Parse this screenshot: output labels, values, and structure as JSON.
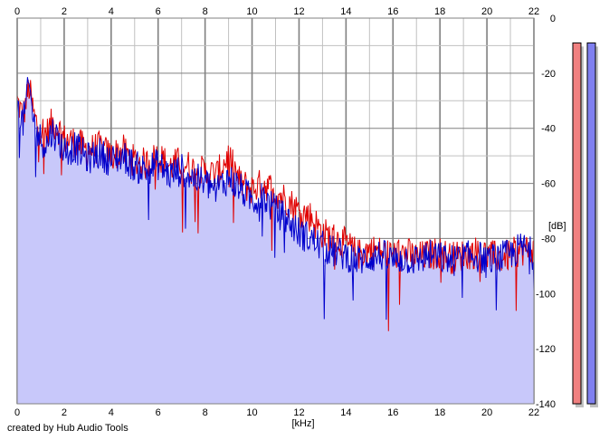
{
  "chart_data": {
    "type": "area",
    "title": "",
    "xlabel": "[kHz]",
    "ylabel": "[dB]",
    "xlim": [
      0,
      22
    ],
    "ylim": [
      -140,
      0
    ],
    "x_ticks": [
      "0",
      "2",
      "4",
      "6",
      "8",
      "10",
      "12",
      "14",
      "16",
      "18",
      "20",
      "22"
    ],
    "y_ticks": [
      "0",
      "-20",
      "-40",
      "-60",
      "-80",
      "-100",
      "-120",
      "-140"
    ],
    "grid": true,
    "colors": {
      "fill": "#c8c8fa",
      "left_channel": "#e00000",
      "right_channel": "#0000cc",
      "grid_minor": "#c0c0c0",
      "grid_major": "#808080"
    },
    "series": [
      {
        "color": "#e00000",
        "x": [
          0,
          0.25,
          0.5,
          0.75,
          1,
          1.25,
          1.5,
          1.75,
          2,
          2.5,
          3,
          3.5,
          4,
          4.5,
          5,
          5.5,
          6,
          6.5,
          7,
          7.5,
          8,
          8.5,
          9,
          9.5,
          10,
          10.5,
          11,
          11.5,
          12,
          12.5,
          13,
          13.5,
          14,
          14.5,
          15,
          15.5,
          16,
          16.5,
          17,
          17.5,
          18,
          18.5,
          19,
          19.5,
          20,
          20.5,
          21,
          21.5,
          22
        ],
        "values": [
          -30,
          -36,
          -25,
          -37,
          -40,
          -42,
          -38,
          -40,
          -44,
          -45,
          -48,
          -47,
          -50,
          -48,
          -52,
          -53,
          -50,
          -54,
          -52,
          -55,
          -56,
          -57,
          -50,
          -60,
          -62,
          -60,
          -63,
          -66,
          -70,
          -72,
          -78,
          -80,
          -82,
          -86,
          -84,
          -85,
          -86,
          -85,
          -87,
          -86,
          -85,
          -87,
          -86,
          -85,
          -86,
          -87,
          -86,
          -84,
          -85
        ]
      },
      {
        "color": "#0000cc",
        "x": [
          0,
          0.25,
          0.5,
          0.75,
          1,
          1.25,
          1.5,
          1.75,
          2,
          2.5,
          3,
          3.5,
          4,
          4.5,
          5,
          5.5,
          6,
          6.5,
          7,
          7.5,
          8,
          8.5,
          9,
          9.5,
          10,
          10.5,
          11,
          11.5,
          12,
          12.5,
          13,
          13.5,
          14,
          14.5,
          15,
          15.5,
          16,
          16.5,
          17,
          17.5,
          18,
          18.5,
          19,
          19.5,
          20,
          20.5,
          21,
          21.5,
          22
        ],
        "values": [
          -32,
          -38,
          -24,
          -40,
          -44,
          -46,
          -41,
          -44,
          -48,
          -47,
          -51,
          -49,
          -52,
          -50,
          -54,
          -55,
          -53,
          -57,
          -55,
          -58,
          -60,
          -62,
          -58,
          -62,
          -66,
          -65,
          -70,
          -73,
          -78,
          -80,
          -83,
          -85,
          -86,
          -88,
          -87,
          -86,
          -88,
          -87,
          -88,
          -86,
          -87,
          -88,
          -87,
          -86,
          -88,
          -87,
          -86,
          -83,
          -86
        ]
      }
    ],
    "level_meters": [
      {
        "color": "#f08080",
        "value": -9
      },
      {
        "color": "#8080f0",
        "value": -9
      }
    ]
  },
  "footer": {
    "credit": "created by Hub Audio Tools"
  }
}
